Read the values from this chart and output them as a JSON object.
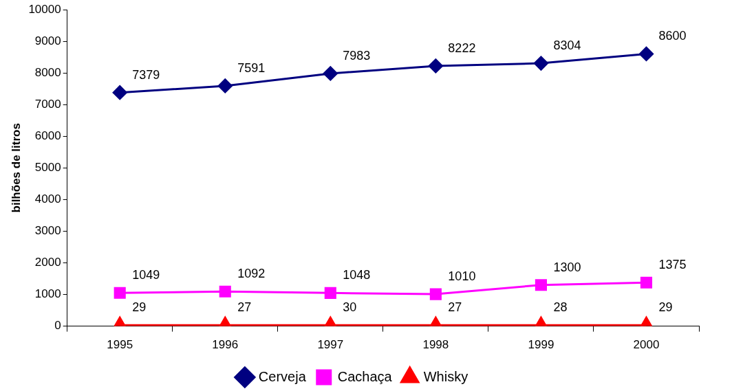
{
  "chart_data": {
    "type": "line",
    "ylabel": "bilhões de litros",
    "categories": [
      "1995",
      "1996",
      "1997",
      "1998",
      "1999",
      "2000"
    ],
    "series": [
      {
        "name": "Cerveja",
        "color": "#000080",
        "marker": "diamond",
        "values": [
          7379,
          7591,
          7983,
          8222,
          8304,
          8600
        ]
      },
      {
        "name": "Cachaça",
        "color": "#ff00ff",
        "marker": "square",
        "values": [
          1049,
          1092,
          1048,
          1010,
          1300,
          1375
        ]
      },
      {
        "name": "Whisky",
        "color": "#ff0000",
        "marker": "triangle",
        "values": [
          29,
          27,
          30,
          27,
          28,
          29
        ]
      }
    ],
    "ylim": [
      0,
      10000
    ],
    "yticks": [
      0,
      1000,
      2000,
      3000,
      4000,
      5000,
      6000,
      7000,
      8000,
      9000,
      10000
    ],
    "grid": false,
    "legend": "bottom",
    "data_labels": true,
    "line_style": "solid"
  }
}
